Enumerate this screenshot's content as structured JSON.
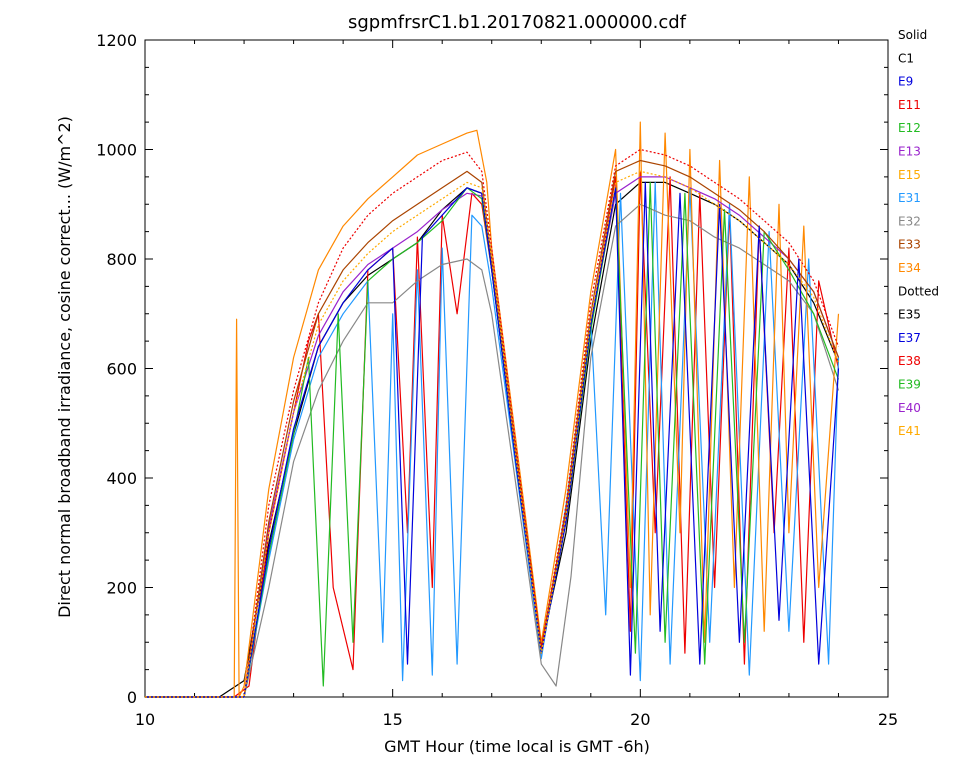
{
  "chart_data": {
    "type": "line",
    "title": "sgpmfrsrC1.b1.20170821.000000.cdf",
    "xlabel": "GMT Hour (time local is GMT -6h)",
    "ylabel": "Direct normal broadband irradiance, cosine correct... (W/m^2)",
    "xlim": [
      10,
      25
    ],
    "ylim": [
      0,
      1200
    ],
    "x_ticks": [
      "10",
      "15",
      "20",
      "25"
    ],
    "y_ticks": [
      "0",
      "200",
      "400",
      "600",
      "800",
      "1000",
      "1200"
    ],
    "grid": false,
    "legend_position": "right",
    "legend": [
      {
        "label": "Solid",
        "color": "#000000",
        "header": true
      },
      {
        "label": "C1",
        "color": "#000000"
      },
      {
        "label": "E9",
        "color": "#0000dd"
      },
      {
        "label": "E11",
        "color": "#ee0000"
      },
      {
        "label": "E12",
        "color": "#22bb22"
      },
      {
        "label": "E13",
        "color": "#9922cc"
      },
      {
        "label": "E15",
        "color": "#ffaa00"
      },
      {
        "label": "E31",
        "color": "#2299ff"
      },
      {
        "label": "E32",
        "color": "#888888"
      },
      {
        "label": "E33",
        "color": "#aa4400"
      },
      {
        "label": "E34",
        "color": "#ff8800"
      },
      {
        "label": "Dotted",
        "color": "#000000",
        "header": true
      },
      {
        "label": "E35",
        "color": "#000000"
      },
      {
        "label": "E37",
        "color": "#0000dd"
      },
      {
        "label": "E38",
        "color": "#ee0000"
      },
      {
        "label": "E39",
        "color": "#22bb22"
      },
      {
        "label": "E40",
        "color": "#9922cc"
      },
      {
        "label": "E41",
        "color": "#ffaa00"
      }
    ],
    "series": [
      {
        "label_key": "C1",
        "style": "solid",
        "color": "#000000",
        "x": [
          10,
          11.5,
          12.0,
          12.5,
          13.0,
          13.5,
          14.0,
          14.5,
          15.0,
          15.5,
          16.0,
          16.5,
          16.8,
          17.0,
          17.5,
          18.0,
          18.5,
          19.0,
          19.5,
          20.0,
          20.5,
          21.0,
          21.5,
          22.0,
          22.5,
          23.0,
          23.5,
          24.0
        ],
        "y": [
          0,
          0,
          30,
          280,
          480,
          640,
          720,
          770,
          800,
          830,
          890,
          930,
          920,
          780,
          420,
          90,
          300,
          650,
          900,
          940,
          940,
          920,
          900,
          870,
          830,
          790,
          720,
          610
        ]
      },
      {
        "label_key": "E11",
        "style": "solid",
        "color": "#ee0000",
        "x": [
          10,
          11.8,
          12.1,
          12.5,
          13.0,
          13.3,
          13.5,
          13.8,
          14.2,
          14.5,
          15.0,
          15.3,
          15.5,
          15.8,
          16.0,
          16.3,
          16.6,
          16.8,
          17.0,
          17.5,
          18.0,
          18.5,
          19.0,
          19.5,
          19.8,
          20.0,
          20.3,
          20.6,
          20.9,
          21.2,
          21.5,
          21.8,
          22.1,
          22.4,
          22.7,
          23.0,
          23.3,
          23.6,
          24.0
        ],
        "y": [
          0,
          0,
          20,
          300,
          520,
          650,
          700,
          200,
          50,
          780,
          820,
          300,
          840,
          200,
          880,
          700,
          920,
          900,
          780,
          430,
          80,
          330,
          680,
          950,
          120,
          960,
          300,
          950,
          80,
          920,
          200,
          890,
          60,
          860,
          300,
          820,
          100,
          760,
          600
        ]
      },
      {
        "label_key": "E31",
        "style": "solid",
        "color": "#2299ff",
        "x": [
          10,
          12.0,
          12.5,
          13.0,
          13.5,
          14.0,
          14.5,
          14.8,
          15.0,
          15.2,
          15.5,
          15.8,
          16.0,
          16.3,
          16.6,
          16.8,
          17.0,
          17.5,
          18.0,
          18.5,
          19.0,
          19.3,
          19.6,
          20.0,
          20.3,
          20.6,
          21.0,
          21.4,
          21.8,
          22.2,
          22.6,
          23.0,
          23.4,
          23.8,
          24.0
        ],
        "y": [
          0,
          0,
          250,
          470,
          620,
          700,
          760,
          100,
          700,
          30,
          780,
          40,
          820,
          60,
          880,
          860,
          750,
          410,
          70,
          350,
          690,
          150,
          920,
          30,
          940,
          60,
          930,
          100,
          900,
          40,
          850,
          120,
          800,
          60,
          620
        ]
      },
      {
        "label_key": "E32",
        "style": "solid",
        "color": "#888888",
        "x": [
          10,
          12.0,
          12.5,
          13.0,
          13.5,
          14.0,
          14.5,
          15.0,
          15.5,
          16.0,
          16.5,
          16.8,
          17.0,
          17.5,
          18.0,
          18.3,
          18.6,
          19.0,
          19.5,
          20.0,
          20.5,
          21.0,
          21.5,
          22.0,
          22.5,
          23.0,
          23.5,
          24.0
        ],
        "y": [
          0,
          0,
          200,
          430,
          560,
          650,
          720,
          720,
          760,
          790,
          800,
          780,
          700,
          380,
          60,
          20,
          220,
          620,
          860,
          900,
          880,
          870,
          840,
          820,
          790,
          760,
          700,
          560
        ]
      },
      {
        "label_key": "E34",
        "style": "solid",
        "color": "#ff8800",
        "x": [
          10,
          11.8,
          11.85,
          11.9,
          12.0,
          12.5,
          13.0,
          13.5,
          14.0,
          14.5,
          15.0,
          15.5,
          16.0,
          16.5,
          16.7,
          16.9,
          17.0,
          17.5,
          18.0,
          18.5,
          19.0,
          19.5,
          19.8,
          20.0,
          20.2,
          20.5,
          20.8,
          21.0,
          21.3,
          21.6,
          21.9,
          22.2,
          22.5,
          22.8,
          23.0,
          23.3,
          23.6,
          24.0
        ],
        "y": [
          0,
          0,
          690,
          0,
          20,
          380,
          620,
          780,
          860,
          910,
          950,
          990,
          1010,
          1030,
          1035,
          940,
          820,
          460,
          100,
          380,
          740,
          1000,
          200,
          1050,
          150,
          1030,
          300,
          1000,
          100,
          980,
          200,
          950,
          120,
          900,
          300,
          860,
          200,
          700
        ]
      },
      {
        "label_key": "E13",
        "style": "solid",
        "color": "#9922cc",
        "x": [
          10,
          12.0,
          12.5,
          13.0,
          13.5,
          14.0,
          14.5,
          15.0,
          15.5,
          16.0,
          16.5,
          16.8,
          17.0,
          17.5,
          18.0,
          18.5,
          19.0,
          19.5,
          20.0,
          20.5,
          21.0,
          21.5,
          22.0,
          22.5,
          23.0,
          23.5,
          24.0
        ],
        "y": [
          0,
          0,
          310,
          520,
          660,
          740,
          790,
          820,
          850,
          890,
          920,
          915,
          790,
          430,
          80,
          330,
          680,
          920,
          950,
          950,
          930,
          910,
          880,
          840,
          800,
          740,
          620
        ]
      },
      {
        "label_key": "E12",
        "style": "solid",
        "color": "#22bb22",
        "x": [
          10,
          12.0,
          12.5,
          13.0,
          13.3,
          13.6,
          13.9,
          14.2,
          14.5,
          15.0,
          15.5,
          16.0,
          16.5,
          16.8,
          17.0,
          17.5,
          18.0,
          18.5,
          19.0,
          19.5,
          19.9,
          20.2,
          20.5,
          20.9,
          21.3,
          21.7,
          22.1,
          22.5,
          23.0,
          23.5,
          24.0
        ],
        "y": [
          0,
          0,
          260,
          480,
          620,
          20,
          700,
          100,
          760,
          800,
          830,
          870,
          930,
          910,
          780,
          420,
          80,
          320,
          670,
          930,
          80,
          940,
          100,
          920,
          60,
          890,
          100,
          850,
          780,
          700,
          580
        ]
      },
      {
        "label_key": "E33",
        "style": "solid",
        "color": "#aa4400",
        "x": [
          10,
          12.0,
          12.5,
          13.0,
          13.5,
          14.0,
          14.5,
          15.0,
          15.5,
          16.0,
          16.5,
          16.8,
          17.0,
          17.5,
          18.0,
          18.5,
          19.0,
          19.5,
          20.0,
          20.5,
          21.0,
          21.5,
          22.0,
          22.5,
          23.0,
          23.5,
          24.0
        ],
        "y": [
          0,
          0,
          320,
          540,
          700,
          780,
          830,
          870,
          900,
          930,
          960,
          940,
          800,
          440,
          90,
          340,
          700,
          960,
          980,
          970,
          950,
          920,
          890,
          850,
          800,
          740,
          620
        ]
      },
      {
        "label_key": "E9",
        "style": "solid",
        "color": "#0000dd",
        "x": [
          10,
          12.0,
          12.5,
          13.0,
          13.5,
          14.0,
          14.5,
          15.0,
          15.3,
          15.6,
          16.0,
          16.5,
          16.8,
          17.0,
          17.5,
          18.0,
          18.5,
          19.0,
          19.5,
          19.8,
          20.1,
          20.4,
          20.8,
          21.2,
          21.6,
          22.0,
          22.4,
          22.8,
          23.2,
          23.6,
          24.0
        ],
        "y": [
          0,
          0,
          270,
          490,
          640,
          720,
          780,
          820,
          60,
          840,
          880,
          930,
          920,
          780,
          420,
          80,
          320,
          680,
          930,
          40,
          940,
          120,
          920,
          60,
          900,
          100,
          860,
          140,
          800,
          60,
          600
        ]
      },
      {
        "label_key": "E38",
        "style": "dotted",
        "color": "#ee0000",
        "x": [
          10,
          12.0,
          12.5,
          13.0,
          13.5,
          14.0,
          14.5,
          15.0,
          15.5,
          16.0,
          16.5,
          16.8,
          17.0,
          17.5,
          18.0,
          18.5,
          19.0,
          19.5,
          20.0,
          20.5,
          21.0,
          21.5,
          22.0,
          22.5,
          23.0,
          23.5,
          24.0
        ],
        "y": [
          0,
          0,
          350,
          560,
          720,
          820,
          880,
          920,
          950,
          980,
          995,
          960,
          820,
          450,
          90,
          350,
          720,
          970,
          1000,
          990,
          970,
          940,
          910,
          870,
          830,
          760,
          640
        ]
      },
      {
        "label_key": "E41",
        "style": "dotted",
        "color": "#ffaa00",
        "x": [
          10,
          12.0,
          12.5,
          13.0,
          13.5,
          14.0,
          14.5,
          15.0,
          15.5,
          16.0,
          16.5,
          16.8,
          17.0,
          17.5,
          18.0,
          18.5,
          19.0,
          19.5,
          20.0,
          20.5,
          21.0,
          21.5,
          22.0,
          22.5,
          23.0,
          23.5,
          24.0
        ],
        "y": [
          0,
          0,
          300,
          520,
          680,
          760,
          810,
          850,
          880,
          910,
          940,
          930,
          800,
          430,
          80,
          330,
          690,
          940,
          960,
          950,
          930,
          900,
          870,
          830,
          790,
          730,
          610
        ]
      }
    ]
  }
}
